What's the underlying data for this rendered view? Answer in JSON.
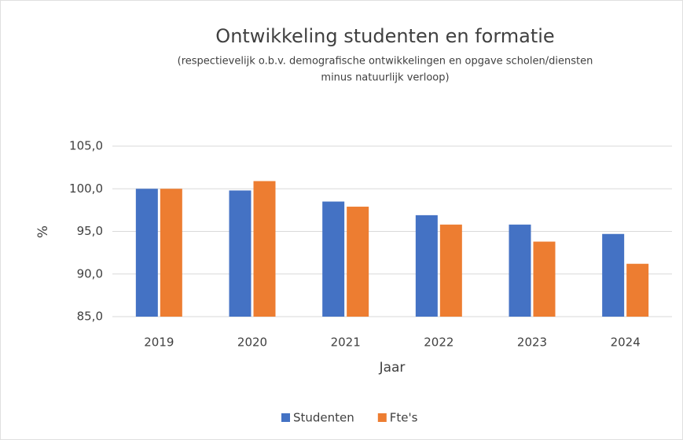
{
  "chart_data": {
    "type": "bar",
    "title": "Ontwikkeling studenten en formatie",
    "subtitle": [
      "(respectievelijk o.b.v. demografische ontwikkelingen en opgave scholen/diensten",
      "minus natuurlijk verloop)"
    ],
    "x_label": "Jaar",
    "y_label": "%",
    "categories": [
      "2019",
      "2020",
      "2021",
      "2022",
      "2023",
      "2024"
    ],
    "series": [
      {
        "name": "Studenten",
        "color": "#4472c4",
        "values": [
          100,
          99.8,
          98.5,
          96.9,
          95.8,
          94.7
        ]
      },
      {
        "name": "Fte's",
        "color": "#ed7d31",
        "values": [
          100,
          100.9,
          97.9,
          95.8,
          93.8,
          91.2
        ]
      }
    ],
    "ylim": [
      85,
      105
    ],
    "yticks": [
      {
        "value": 85,
        "label": "85,0"
      },
      {
        "value": 90,
        "label": "90,0"
      },
      {
        "value": 95,
        "label": "95,0"
      },
      {
        "value": 100,
        "label": "100,0"
      },
      {
        "value": 105,
        "label": "105,0"
      }
    ],
    "grid": true,
    "legend": "bottom"
  }
}
